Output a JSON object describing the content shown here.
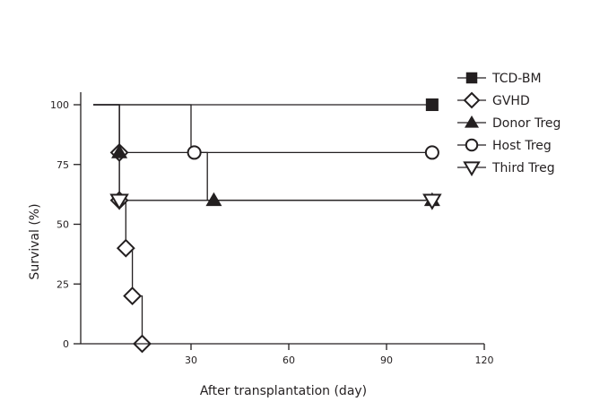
{
  "chart_data": {
    "type": "line",
    "subtype": "step",
    "xlabel": "After transplantation (day)",
    "ylabel": "Survival (%)",
    "xlim": [
      -4,
      120
    ],
    "ylim": [
      0,
      100
    ],
    "xticks": [
      30,
      60,
      90,
      120
    ],
    "yticks": [
      0,
      25,
      50,
      75,
      100
    ],
    "grid": false,
    "legend_position": "top-right",
    "line_color": "#231f20",
    "series": [
      {
        "name": "TCD-BM",
        "marker": "filled-square",
        "x": [
          0,
          104
        ],
        "y": [
          100,
          100
        ],
        "marker_points": [
          [
            104,
            100
          ]
        ]
      },
      {
        "name": "GVHD",
        "marker": "open-diamond",
        "x": [
          0,
          8,
          8,
          8,
          8,
          10,
          10,
          12,
          12,
          15,
          15
        ],
        "y": [
          100,
          100,
          80,
          80,
          60,
          60,
          40,
          40,
          20,
          20,
          0
        ],
        "marker_points": [
          [
            8,
            80
          ],
          [
            8,
            60
          ],
          [
            10,
            40
          ],
          [
            12,
            20
          ],
          [
            15,
            0
          ]
        ]
      },
      {
        "name": "Donor Treg",
        "marker": "filled-triangle-up",
        "x": [
          0,
          8,
          8,
          35,
          35,
          104
        ],
        "y": [
          100,
          100,
          80,
          80,
          60,
          60
        ],
        "marker_points": [
          [
            8,
            80
          ],
          [
            37,
            60
          ],
          [
            104,
            60
          ]
        ]
      },
      {
        "name": "Host Treg",
        "marker": "open-circle",
        "x": [
          0,
          30,
          30,
          104
        ],
        "y": [
          100,
          100,
          80,
          80
        ],
        "marker_points": [
          [
            31,
            80
          ],
          [
            104,
            80
          ]
        ]
      },
      {
        "name": "Third Treg",
        "marker": "open-triangle-down",
        "x": [
          0,
          8,
          8,
          104
        ],
        "y": [
          100,
          100,
          60,
          60
        ],
        "marker_points": [
          [
            8,
            60
          ],
          [
            104,
            60
          ]
        ]
      }
    ]
  }
}
